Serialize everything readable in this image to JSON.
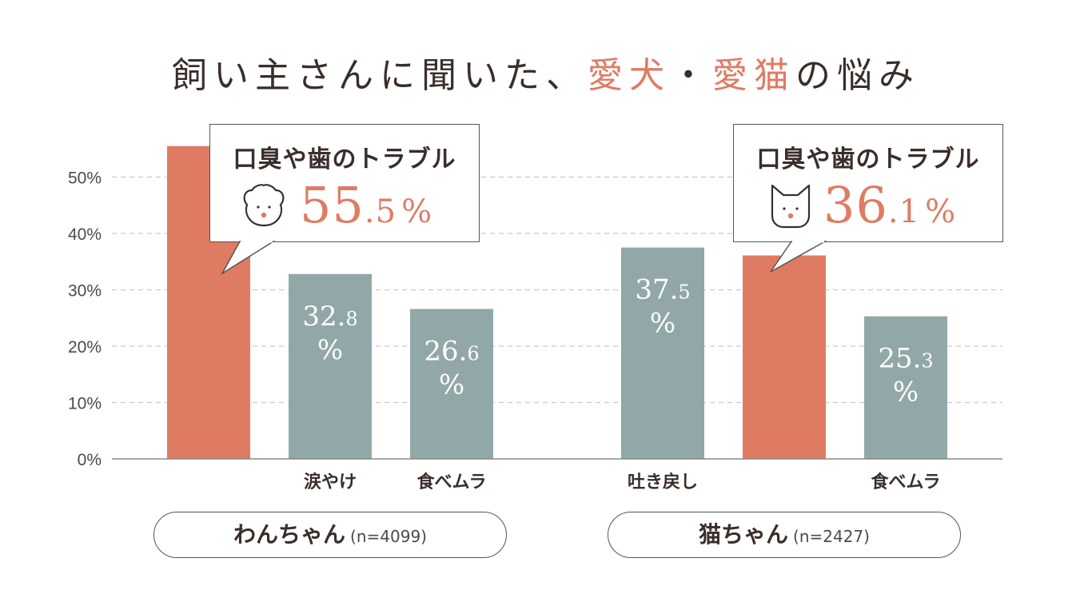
{
  "title": {
    "prefix": "飼い主さんに聞いた、",
    "accent1": "愛犬",
    "separator": "・",
    "accent2": "愛猫",
    "suffix": "の悩み"
  },
  "colors": {
    "highlight": "#e07b63",
    "bar": "#92a7a8",
    "text": "#3a2e2a"
  },
  "chart_data": {
    "type": "bar",
    "ylim": [
      0,
      55
    ],
    "yticks": [
      "0%",
      "10%",
      "20%",
      "30%",
      "40%",
      "50%"
    ],
    "ytick_values": [
      0,
      10,
      20,
      30,
      40,
      50
    ],
    "grid": true,
    "groups": [
      {
        "name": "わんちゃん",
        "n": "(n=4099)",
        "bars": [
          {
            "category": "",
            "value": 55.5,
            "highlight": true,
            "label": ""
          },
          {
            "category": "涙やけ",
            "value": 32.8,
            "highlight": false,
            "label": "32.8%"
          },
          {
            "category": "食べムラ",
            "value": 26.6,
            "highlight": false,
            "label": "26.6%"
          }
        ]
      },
      {
        "name": "猫ちゃん",
        "n": "(n=2427)",
        "bars": [
          {
            "category": "吐き戻し",
            "value": 37.5,
            "highlight": false,
            "label": "37.5%"
          },
          {
            "category": "",
            "value": 36.1,
            "highlight": true,
            "label": ""
          },
          {
            "category": "食べムラ",
            "value": 25.3,
            "highlight": false,
            "label": "25.3%"
          }
        ]
      }
    ]
  },
  "callouts": [
    {
      "title": "口臭や歯のトラブル",
      "value_int": "55",
      "value_dec": ".5",
      "unit": "%",
      "icon": "dog-face-icon"
    },
    {
      "title": "口臭や歯のトラブル",
      "value_int": "36",
      "value_dec": ".1",
      "unit": "%",
      "icon": "cat-face-icon"
    }
  ],
  "pills": [
    {
      "label": "わんちゃん",
      "n": "(n=4099)"
    },
    {
      "label": "猫ちゃん",
      "n": "(n=2427)"
    }
  ]
}
